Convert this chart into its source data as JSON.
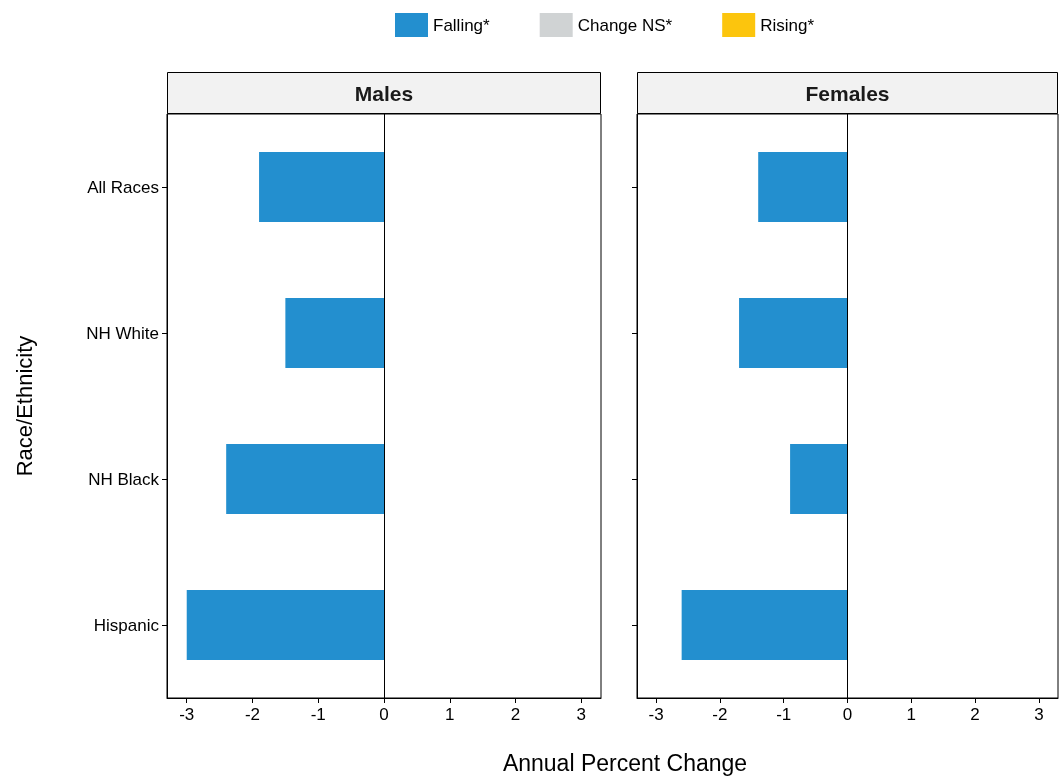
{
  "chart_data": [
    {
      "type": "bar",
      "orientation": "horizontal",
      "title": "Males",
      "ylabel": "Race/Ethnicity",
      "xlabel": "Annual Percent Change",
      "categories": [
        "All Races",
        "NH White",
        "NH Black",
        "Hispanic"
      ],
      "series": [
        {
          "name": "Falling*",
          "color": "#238fcf",
          "values": [
            -1.9,
            -1.5,
            -2.4,
            -3.0
          ]
        },
        {
          "name": "Change NS*",
          "color": "#d0d3d4",
          "values": [
            null,
            null,
            null,
            null
          ]
        },
        {
          "name": "Rising*",
          "color": "#fcc50d",
          "values": [
            null,
            null,
            null,
            null
          ]
        }
      ],
      "xlim": [
        -3.3,
        3.3
      ],
      "xticks": [
        -3,
        -2,
        -1,
        0,
        1,
        2,
        3
      ],
      "ref_lines": [
        {
          "axis": "x",
          "value": 0
        }
      ],
      "legend": "top",
      "grid": false
    },
    {
      "type": "bar",
      "orientation": "horizontal",
      "title": "Females",
      "categories": [
        null,
        null,
        null,
        null
      ],
      "series": [
        {
          "color": "#238fcf",
          "values": [
            -1.4,
            -1.7,
            -0.9,
            -2.6
          ]
        }
      ],
      "xlim": [
        -3.3,
        3.3
      ],
      "xticks": [
        -3,
        -2,
        -1,
        0,
        1,
        2,
        3
      ],
      "ref_lines": [
        {
          "axis": "x",
          "value": 0
        }
      ],
      "tick_labels": "x",
      "grid": false
    }
  ]
}
